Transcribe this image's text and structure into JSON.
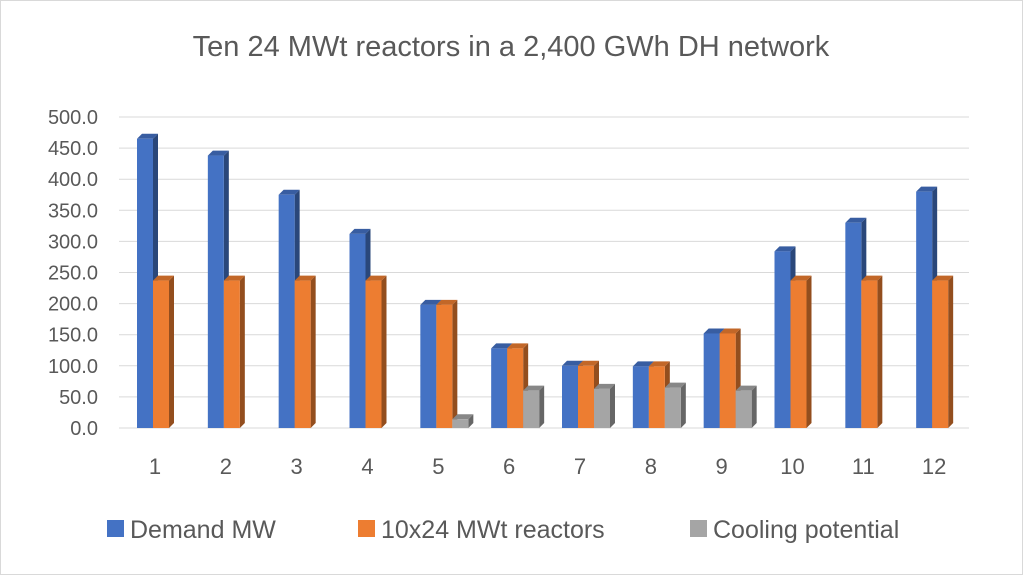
{
  "chart_data": {
    "type": "bar",
    "title": "Ten 24 MWt reactors in a 2,400 GWh DH network",
    "xlabel": "",
    "ylabel": "",
    "categories": [
      "1",
      "2",
      "3",
      "4",
      "5",
      "6",
      "7",
      "8",
      "9",
      "10",
      "11",
      "12"
    ],
    "ylim": [
      0,
      500
    ],
    "yticks": [
      "0.0",
      "50.0",
      "100.0",
      "150.0",
      "200.0",
      "250.0",
      "300.0",
      "350.0",
      "400.0",
      "450.0",
      "500.0"
    ],
    "grid": true,
    "legend_position": "bottom",
    "series": [
      {
        "name": "Demand MW",
        "color": "#4472c4",
        "values": [
          465,
          438,
          375,
          312,
          198,
          128,
          100,
          99,
          152,
          284,
          330,
          380
        ]
      },
      {
        "name": "10x24 MWt reactors",
        "color": "#ed7d31",
        "values": [
          237,
          237,
          237,
          237,
          198,
          128,
          100,
          99,
          152,
          237,
          237,
          237
        ]
      },
      {
        "name": "Cooling potential",
        "color": "#a5a5a5",
        "values": [
          0,
          0,
          0,
          0,
          14,
          60,
          63,
          65,
          60,
          0,
          0,
          0
        ]
      }
    ]
  }
}
